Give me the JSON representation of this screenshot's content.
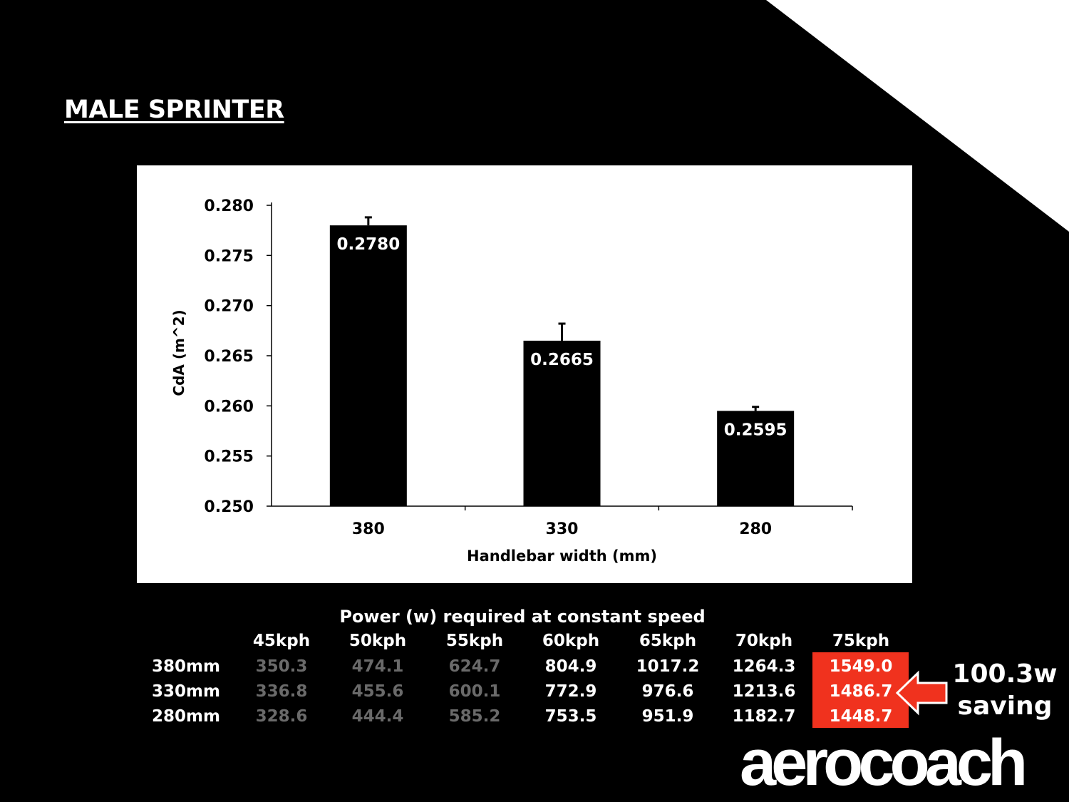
{
  "slide": {
    "title": "MALE SPRINTER",
    "background": "#000000",
    "accent": "#f0321e"
  },
  "chart_data": {
    "type": "bar",
    "categories": [
      "380",
      "330",
      "280"
    ],
    "values": [
      0.278,
      0.2665,
      0.2595
    ],
    "error_up": [
      0.0008,
      0.0017,
      0.0004
    ],
    "data_labels": [
      "0.2780",
      "0.2665",
      "0.2595"
    ],
    "title": "",
    "xlabel": "Handlebar width (mm)",
    "ylabel": "CdA (m^2)",
    "ylim": [
      0.25,
      0.28
    ],
    "yticks": [
      "0.280",
      "0.275",
      "0.270",
      "0.265",
      "0.260",
      "0.255",
      "0.250"
    ],
    "grid": false,
    "bar_color": "#000000"
  },
  "table": {
    "title": "Power (w) required at constant speed",
    "columns": [
      "45kph",
      "50kph",
      "55kph",
      "60kph",
      "65kph",
      "70kph",
      "75kph"
    ],
    "rows": [
      {
        "label": "380mm",
        "values": [
          "350.3",
          "474.1",
          "624.7",
          "804.9",
          "1017.2",
          "1264.3",
          "1549.0"
        ]
      },
      {
        "label": "330mm",
        "values": [
          "336.8",
          "455.6",
          "600.1",
          "772.9",
          "976.6",
          "1213.6",
          "1486.7"
        ]
      },
      {
        "label": "280mm",
        "values": [
          "328.6",
          "444.4",
          "585.2",
          "753.5",
          "951.9",
          "1182.7",
          "1448.7"
        ]
      }
    ],
    "greyed_columns": [
      "45kph",
      "50kph",
      "55kph"
    ],
    "highlighted_column": "75kph"
  },
  "callout": {
    "line1": "100.3w",
    "line2": "saving",
    "icon": "arrow-left-icon"
  },
  "logo": "aerocoach"
}
